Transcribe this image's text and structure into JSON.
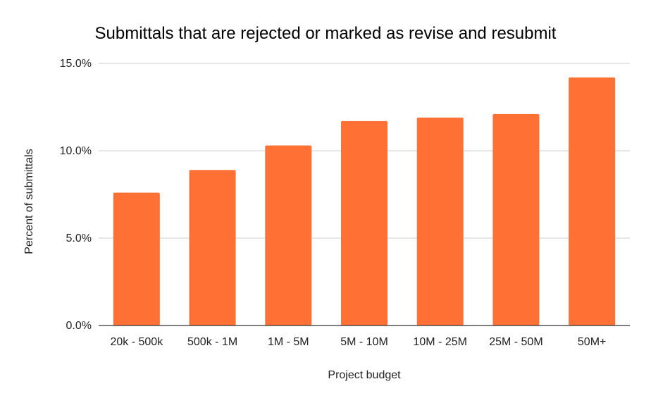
{
  "chart_data": {
    "type": "bar",
    "title": "Submittals that are rejected or marked as revise and resubmit",
    "xlabel": "Project budget",
    "ylabel": "Percent of submittals",
    "categories": [
      "20k - 500k",
      "500k - 1M",
      "1M - 5M",
      "5M - 10M",
      "10M - 25M",
      "25M - 50M",
      "50M+"
    ],
    "series": [
      {
        "name": "Percent of submittals",
        "values": [
          7.6,
          8.9,
          10.3,
          11.7,
          11.9,
          12.1,
          14.2
        ]
      }
    ],
    "ylim": [
      0,
      15
    ],
    "yticks": [
      0,
      5,
      10,
      15
    ],
    "ytick_labels": [
      "0.0%",
      "5.0%",
      "10.0%",
      "15.0%"
    ],
    "grid": true,
    "legend": "none",
    "colors": {
      "bar": "#ff7034",
      "grid": "#cccccc",
      "axis": "#333333"
    }
  }
}
